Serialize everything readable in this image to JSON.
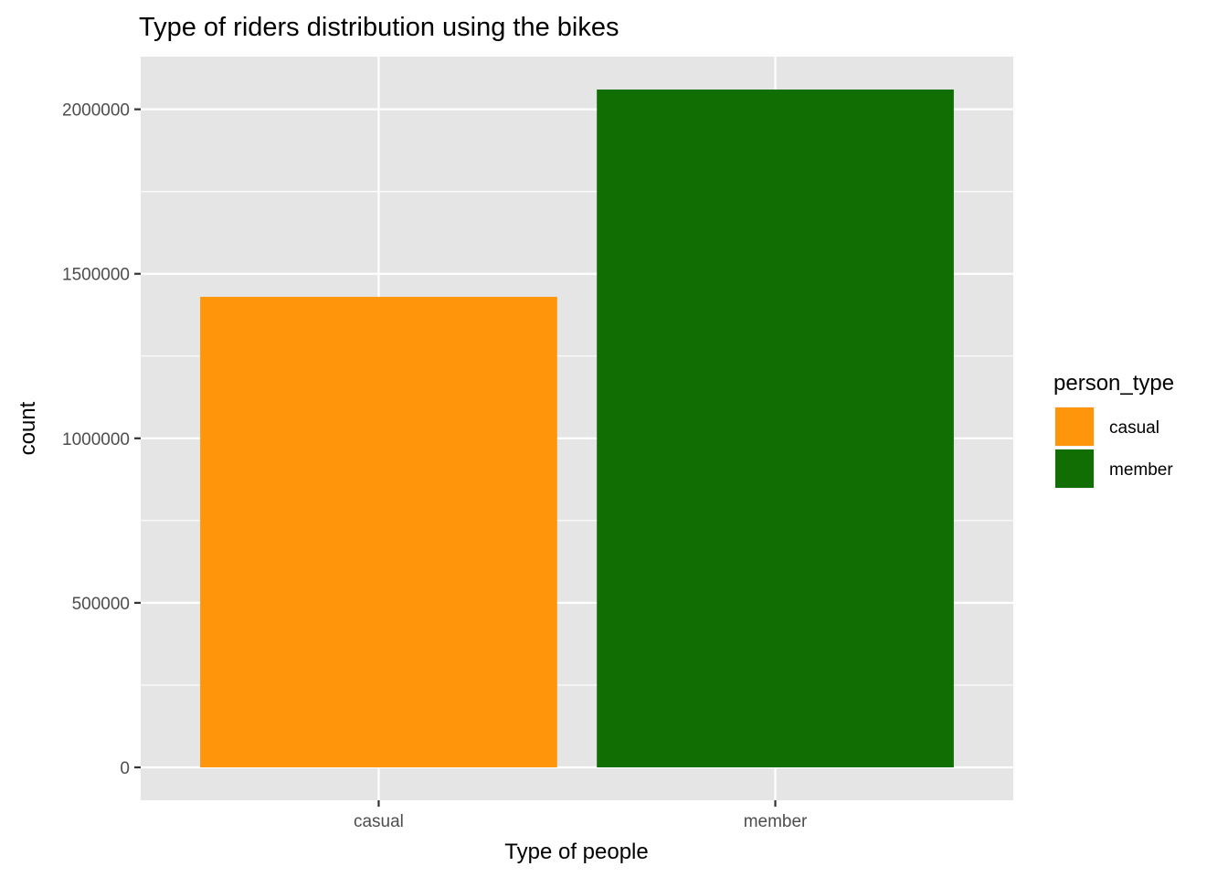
{
  "chart_data": {
    "type": "bar",
    "title": "Type of riders distribution using the bikes",
    "xlabel": "Type of people",
    "ylabel": "count",
    "categories": [
      "casual",
      "member"
    ],
    "values": [
      1430000,
      2060000
    ],
    "ylim": [
      -100000,
      2160000
    ],
    "yticks": [
      0,
      500000,
      1000000,
      1500000,
      2000000
    ],
    "ytick_labels": [
      "0",
      "500000",
      "1000000",
      "1500000",
      "2000000"
    ],
    "grid": true,
    "colors": {
      "casual": "#ff950b",
      "member": "#106e02",
      "panel_background": "#e5e5e5",
      "grid": "#ffffff"
    },
    "legend": {
      "title": "person_type",
      "position": "right",
      "entries": [
        "casual",
        "member"
      ]
    }
  }
}
